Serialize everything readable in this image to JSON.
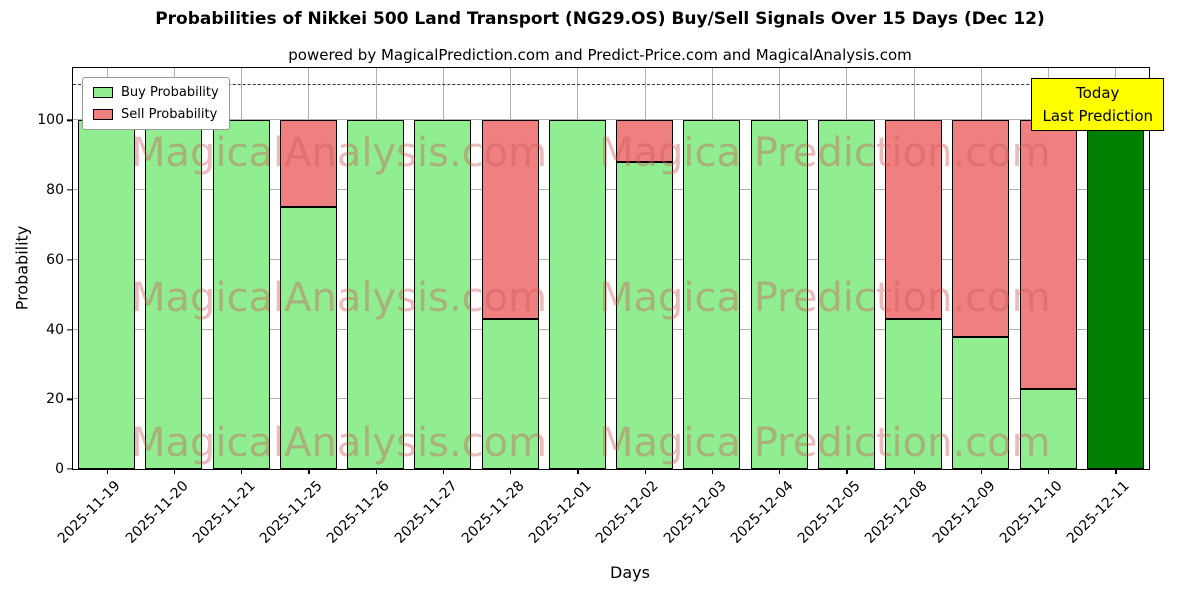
{
  "annotation": {
    "line1": "Today",
    "line2": "Last Prediction",
    "bg_color": "#ffff00"
  },
  "watermarks": {
    "left": "MagicalAnalysis.com",
    "right": "Magica Prediction.com"
  },
  "chart_data": {
    "type": "bar",
    "stacked": true,
    "title": "Probabilities of Nikkei 500 Land Transport (NG29.OS) Buy/Sell Signals Over 15 Days (Dec 12)",
    "subtitle": "powered by MagicalPrediction.com and Predict-Price.com and MagicalAnalysis.com",
    "xlabel": "Days",
    "ylabel": "Probability",
    "categories": [
      "2025-11-19",
      "2025-11-20",
      "2025-11-21",
      "2025-11-25",
      "2025-11-26",
      "2025-11-27",
      "2025-11-28",
      "2025-12-01",
      "2025-12-02",
      "2025-12-03",
      "2025-12-04",
      "2025-12-05",
      "2025-12-08",
      "2025-12-09",
      "2025-12-10",
      "2025-12-11"
    ],
    "series": [
      {
        "name": "Buy Probability",
        "color": "#90ee90",
        "values": [
          100,
          100,
          100,
          75,
          100,
          100,
          43,
          100,
          88,
          100,
          100,
          100,
          43,
          38,
          23,
          100
        ]
      },
      {
        "name": "Sell Probability",
        "color": "#f08080",
        "values": [
          0,
          0,
          0,
          25,
          0,
          0,
          57,
          0,
          12,
          0,
          0,
          0,
          57,
          62,
          77,
          0
        ]
      }
    ],
    "today_index": 15,
    "today_bar_color": "#008000",
    "ylim": [
      0,
      115
    ],
    "yticks": [
      0,
      20,
      40,
      60,
      80,
      100
    ],
    "dashed_line_y": 110,
    "grid": true,
    "legend_position": "upper left"
  }
}
